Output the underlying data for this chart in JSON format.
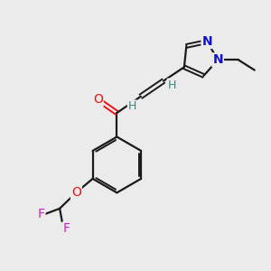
{
  "bg_color": "#ebebeb",
  "bond_color": "#1a1a1a",
  "oxygen_color": "#ee1111",
  "nitrogen_color": "#1111cc",
  "fluorine_color": "#cc22cc",
  "hydrogen_color": "#2e8b8b",
  "figsize": [
    3.0,
    3.0
  ],
  "dpi": 100,
  "xlim": [
    0,
    10
  ],
  "ylim": [
    0,
    10
  ]
}
